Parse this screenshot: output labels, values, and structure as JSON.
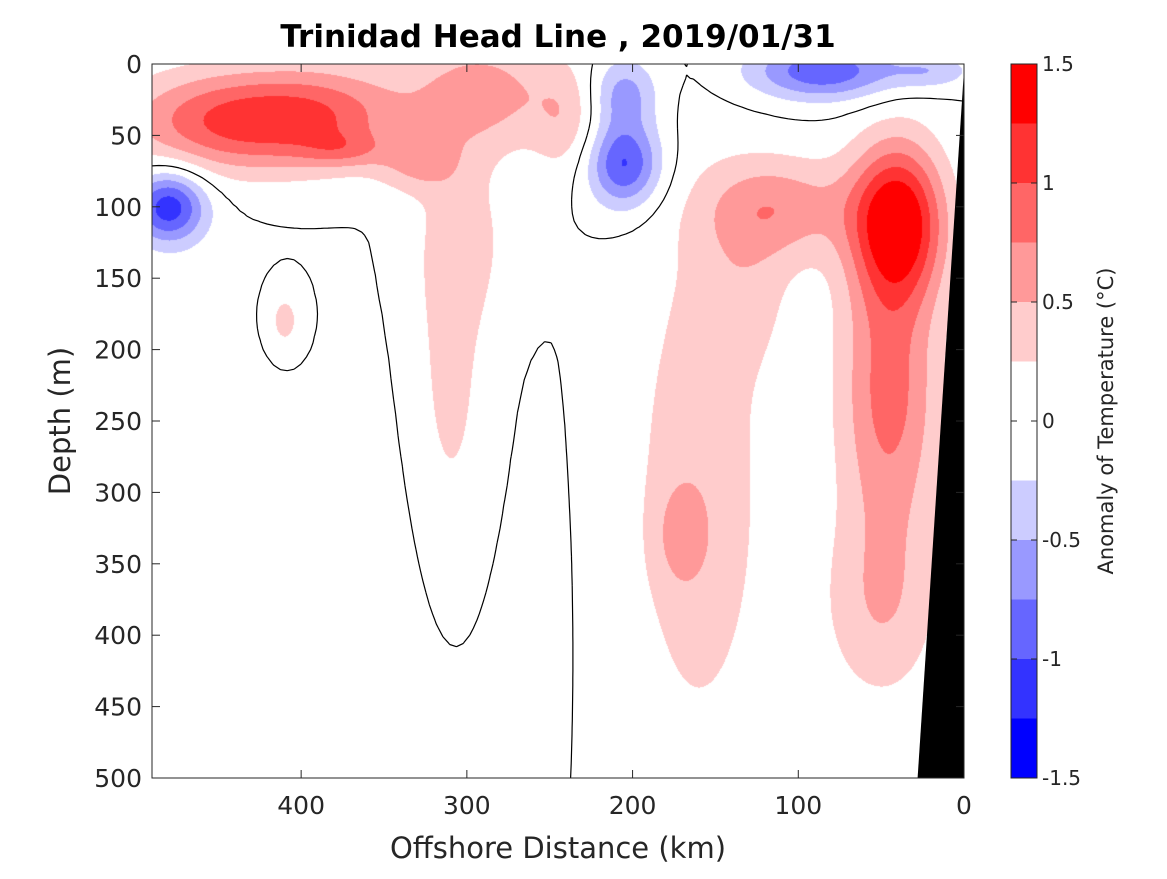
{
  "chart_data": {
    "type": "heatmap",
    "title": "Trinidad Head Line , 2019/01/31",
    "xlabel": "Offshore Distance (km)",
    "ylabel": "Depth (m)",
    "xlim": [
      490,
      0
    ],
    "ylim": [
      500,
      0
    ],
    "x_reversed": true,
    "y_reversed": true,
    "x_ticks": [
      400,
      300,
      200,
      100,
      0
    ],
    "y_ticks": [
      0,
      50,
      100,
      150,
      200,
      250,
      300,
      350,
      400,
      450,
      500
    ],
    "colorbar": {
      "label": "Anomaly of Temperature (°C)",
      "range": [
        -1.5,
        1.5
      ],
      "ticks": [
        1.5,
        1,
        0.5,
        0,
        -0.5,
        -1,
        -1.5
      ],
      "levels": [
        -1.5,
        -1.25,
        -1.0,
        -0.75,
        -0.5,
        -0.25,
        0.25,
        0.5,
        0.75,
        1.0,
        1.25,
        1.5
      ],
      "colors": [
        "#0000ff",
        "#3333ff",
        "#6666ff",
        "#9999ff",
        "#ccccff",
        "#ffffff",
        "#ffcccc",
        "#ff9999",
        "#ff6666",
        "#ff3333",
        "#ff0000"
      ]
    },
    "contour_levels": [
      -0.5,
      -0.25,
      0.25,
      0.5,
      0.75,
      1.0,
      1.25
    ],
    "contour_line_level": 0,
    "features": [
      {
        "x": 440,
        "y": 40,
        "sx": 65,
        "sy": 35,
        "a": 1.05
      },
      {
        "x": 380,
        "y": 35,
        "sx": 50,
        "sy": 35,
        "a": 0.55
      },
      {
        "x": 330,
        "y": 70,
        "sx": 25,
        "sy": 20,
        "a": 0.4
      },
      {
        "x": 290,
        "y": 20,
        "sx": 45,
        "sy": 40,
        "a": 0.6
      },
      {
        "x": 240,
        "y": 40,
        "sx": 20,
        "sy": 40,
        "a": 0.35
      },
      {
        "x": 375,
        "y": 60,
        "sx": 25,
        "sy": 12,
        "a": 0.35
      },
      {
        "x": 310,
        "y": 230,
        "sx": 25,
        "sy": 140,
        "a": 0.35
      },
      {
        "x": 300,
        "y": 120,
        "sx": 30,
        "sy": 60,
        "a": 0.25
      },
      {
        "x": 410,
        "y": 180,
        "sx": 12,
        "sy": 25,
        "a": 0.35
      },
      {
        "x": 480,
        "y": 100,
        "sx": 22,
        "sy": 25,
        "a": -1.15
      },
      {
        "x": 205,
        "y": 70,
        "sx": 22,
        "sy": 30,
        "a": -1.05
      },
      {
        "x": 205,
        "y": 20,
        "sx": 20,
        "sy": 25,
        "a": -0.6
      },
      {
        "x": 85,
        "y": 5,
        "sx": 45,
        "sy": 20,
        "a": -0.95
      },
      {
        "x": 20,
        "y": 5,
        "sx": 25,
        "sy": 12,
        "a": -0.4
      },
      {
        "x": 40,
        "y": 110,
        "sx": 28,
        "sy": 55,
        "a": 1.45
      },
      {
        "x": 45,
        "y": 230,
        "sx": 30,
        "sy": 100,
        "a": 0.85
      },
      {
        "x": 50,
        "y": 380,
        "sx": 35,
        "sy": 70,
        "a": 0.45
      },
      {
        "x": 110,
        "y": 100,
        "sx": 45,
        "sy": 35,
        "a": 0.6
      },
      {
        "x": 170,
        "y": 330,
        "sx": 15,
        "sy": 35,
        "a": 0.35
      },
      {
        "x": 160,
        "y": 300,
        "sx": 45,
        "sy": 200,
        "a": 0.4
      },
      {
        "x": 130,
        "y": 150,
        "sx": 30,
        "sy": 60,
        "a": 0.25
      },
      {
        "x": 350,
        "y": 350,
        "sx": 90,
        "sy": 150,
        "a": -0.1
      },
      {
        "x": 460,
        "y": 300,
        "sx": 40,
        "sy": 150,
        "a": -0.15
      }
    ],
    "land_mask": {
      "bottom_left_x": 28,
      "top_x": 0,
      "color": "#000000"
    }
  }
}
